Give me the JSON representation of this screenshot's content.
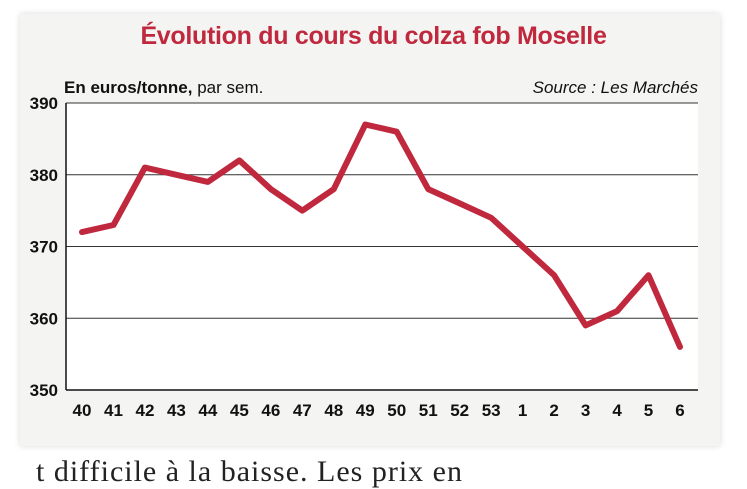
{
  "chart_data": {
    "type": "line",
    "title": "Évolution du cours du colza fob Moselle",
    "unit_bold": "En euros/tonne,",
    "unit_rest": " par sem.",
    "source": "Source : Les Marchés",
    "categories": [
      "40",
      "41",
      "42",
      "43",
      "44",
      "45",
      "46",
      "47",
      "48",
      "49",
      "50",
      "51",
      "52",
      "53",
      "1",
      "2",
      "3",
      "4",
      "5",
      "6"
    ],
    "series": [
      {
        "values": [
          372,
          373,
          381,
          380,
          379,
          382,
          378,
          375,
          378,
          387,
          386,
          378,
          376,
          374,
          370,
          366,
          359,
          361,
          366,
          356
        ]
      }
    ],
    "ylim": [
      350,
      390
    ],
    "yticks": [
      "390",
      "380",
      "370",
      "360",
      "350"
    ],
    "grid": true,
    "line_color": "#c0283e"
  },
  "trailing_text": "t difficile à la baisse. Les prix en"
}
